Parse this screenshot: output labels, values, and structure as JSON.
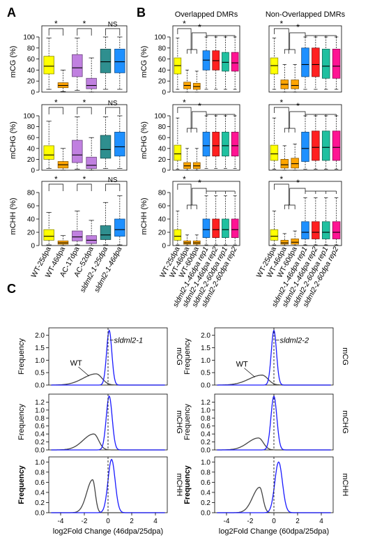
{
  "panels": {
    "A": "A",
    "B": "B",
    "C": "C"
  },
  "colors": {
    "yellow": "#ffff00",
    "orange": "#ffa500",
    "purple": "#c080e0",
    "teal": "#2f8f8f",
    "blue_box": "#1e90ff",
    "red": "#ff2020",
    "green": "#20c0a0",
    "pink": "#ff1493",
    "line_wt": "#444444",
    "line_mut": "#1a1aff"
  },
  "significance": {
    "star": "*",
    "ns": "NS"
  },
  "chart_data": [
    {
      "id": "A-mCG",
      "type": "box",
      "ylabel": "mCG (%)",
      "ylim": [
        0,
        100
      ],
      "yticks": [
        0,
        20,
        40,
        60,
        80,
        100
      ],
      "boxes": [
        {
          "color": "yellow",
          "q1": 33,
          "med": 47,
          "q3": 65,
          "lo": 5,
          "hi": 98
        },
        {
          "color": "orange",
          "q1": 8,
          "med": 12,
          "q3": 17,
          "lo": 1,
          "hi": 40
        },
        {
          "color": "purple",
          "q1": 28,
          "med": 44,
          "q3": 68,
          "lo": 3,
          "hi": 98
        },
        {
          "color": "purple",
          "q1": 6,
          "med": 12,
          "q3": 25,
          "lo": 0,
          "hi": 62
        },
        {
          "color": "teal",
          "q1": 35,
          "med": 55,
          "q3": 78,
          "lo": 5,
          "hi": 100
        },
        {
          "color": "blue_box",
          "q1": 35,
          "med": 55,
          "q3": 78,
          "lo": 5,
          "hi": 100
        }
      ]
    },
    {
      "id": "A-mCHG",
      "type": "box",
      "ylabel": "mCHG (%)",
      "ylim": [
        0,
        100
      ],
      "yticks": [
        0,
        20,
        40,
        60,
        80,
        100
      ],
      "boxes": [
        {
          "color": "yellow",
          "q1": 20,
          "med": 28,
          "q3": 45,
          "lo": 3,
          "hi": 90
        },
        {
          "color": "orange",
          "q1": 4,
          "med": 10,
          "q3": 16,
          "lo": 0,
          "hi": 40
        },
        {
          "color": "purple",
          "q1": 14,
          "med": 28,
          "q3": 55,
          "lo": 2,
          "hi": 98
        },
        {
          "color": "purple",
          "q1": 3,
          "med": 9,
          "q3": 24,
          "lo": 0,
          "hi": 60
        },
        {
          "color": "teal",
          "q1": 22,
          "med": 38,
          "q3": 64,
          "lo": 3,
          "hi": 98
        },
        {
          "color": "blue_box",
          "q1": 26,
          "med": 43,
          "q3": 70,
          "lo": 3,
          "hi": 100
        }
      ]
    },
    {
      "id": "A-mCHH",
      "type": "box",
      "ylabel": "mCHH (%)",
      "ylim": [
        0,
        80
      ],
      "yticks": [
        0,
        20,
        40,
        60,
        80
      ],
      "boxes": [
        {
          "color": "yellow",
          "q1": 8,
          "med": 14,
          "q3": 24,
          "lo": 1,
          "hi": 50
        },
        {
          "color": "orange",
          "q1": 2,
          "med": 4,
          "q3": 7,
          "lo": 0,
          "hi": 15
        },
        {
          "color": "purple",
          "q1": 7,
          "med": 13,
          "q3": 22,
          "lo": 1,
          "hi": 52
        },
        {
          "color": "purple",
          "q1": 3,
          "med": 8,
          "q3": 15,
          "lo": 0,
          "hi": 38
        },
        {
          "color": "teal",
          "q1": 9,
          "med": 16,
          "q3": 30,
          "lo": 1,
          "hi": 65
        },
        {
          "color": "blue_box",
          "q1": 14,
          "med": 24,
          "q3": 40,
          "lo": 1,
          "hi": 75
        }
      ]
    },
    {
      "id": "B-ov-mCG",
      "type": "box",
      "ylabel": "mCG (%)",
      "ylim": [
        0,
        100
      ],
      "title": "Overlapped DMRs",
      "yticks": [
        0,
        20,
        40,
        60,
        80,
        100
      ],
      "boxes": [
        {
          "color": "yellow",
          "q1": 33,
          "med": 48,
          "q3": 62,
          "lo": 5,
          "hi": 98
        },
        {
          "color": "orange",
          "q1": 6,
          "med": 12,
          "q3": 18,
          "lo": 0,
          "hi": 40
        },
        {
          "color": "orange",
          "q1": 5,
          "med": 10,
          "q3": 16,
          "lo": 0,
          "hi": 38
        },
        {
          "color": "blue_box",
          "q1": 40,
          "med": 58,
          "q3": 75,
          "lo": 5,
          "hi": 100
        },
        {
          "color": "red",
          "q1": 40,
          "med": 57,
          "q3": 75,
          "lo": 5,
          "hi": 100
        },
        {
          "color": "green",
          "q1": 38,
          "med": 54,
          "q3": 72,
          "lo": 5,
          "hi": 100
        },
        {
          "color": "pink",
          "q1": 38,
          "med": 53,
          "q3": 72,
          "lo": 5,
          "hi": 100
        }
      ]
    },
    {
      "id": "B-non-mCG",
      "type": "box",
      "ylabel": "",
      "ylim": [
        0,
        100
      ],
      "title": "Non-Overlapped DMRs",
      "yticks": [],
      "boxes": [
        {
          "color": "yellow",
          "q1": 33,
          "med": 48,
          "q3": 62,
          "lo": 5,
          "hi": 98
        },
        {
          "color": "orange",
          "q1": 6,
          "med": 14,
          "q3": 22,
          "lo": 0,
          "hi": 50
        },
        {
          "color": "orange",
          "q1": 6,
          "med": 12,
          "q3": 22,
          "lo": 0,
          "hi": 50
        },
        {
          "color": "blue_box",
          "q1": 28,
          "med": 50,
          "q3": 80,
          "lo": 5,
          "hi": 100
        },
        {
          "color": "red",
          "q1": 28,
          "med": 50,
          "q3": 80,
          "lo": 5,
          "hi": 100
        },
        {
          "color": "green",
          "q1": 25,
          "med": 47,
          "q3": 78,
          "lo": 5,
          "hi": 100
        },
        {
          "color": "pink",
          "q1": 25,
          "med": 47,
          "q3": 78,
          "lo": 5,
          "hi": 100
        }
      ]
    },
    {
      "id": "B-ov-mCHG",
      "type": "box",
      "ylabel": "mCHG (%)",
      "ylim": [
        0,
        100
      ],
      "yticks": [
        0,
        20,
        40,
        60,
        80,
        100
      ],
      "boxes": [
        {
          "color": "yellow",
          "q1": 18,
          "med": 30,
          "q3": 46,
          "lo": 2,
          "hi": 96
        },
        {
          "color": "orange",
          "q1": 3,
          "med": 8,
          "q3": 14,
          "lo": 0,
          "hi": 40
        },
        {
          "color": "orange",
          "q1": 3,
          "med": 8,
          "q3": 14,
          "lo": 0,
          "hi": 40
        },
        {
          "color": "blue_box",
          "q1": 26,
          "med": 45,
          "q3": 70,
          "lo": 3,
          "hi": 100
        },
        {
          "color": "red",
          "q1": 26,
          "med": 45,
          "q3": 70,
          "lo": 3,
          "hi": 100
        },
        {
          "color": "green",
          "q1": 26,
          "med": 45,
          "q3": 70,
          "lo": 3,
          "hi": 100
        },
        {
          "color": "pink",
          "q1": 26,
          "med": 45,
          "q3": 70,
          "lo": 3,
          "hi": 100
        }
      ]
    },
    {
      "id": "B-non-mCHG",
      "type": "box",
      "ylabel": "",
      "ylim": [
        0,
        100
      ],
      "yticks": [],
      "boxes": [
        {
          "color": "yellow",
          "q1": 18,
          "med": 30,
          "q3": 46,
          "lo": 2,
          "hi": 96
        },
        {
          "color": "orange",
          "q1": 4,
          "med": 10,
          "q3": 20,
          "lo": 0,
          "hi": 45
        },
        {
          "color": "orange",
          "q1": 4,
          "med": 12,
          "q3": 22,
          "lo": 0,
          "hi": 48
        },
        {
          "color": "blue_box",
          "q1": 16,
          "med": 40,
          "q3": 70,
          "lo": 2,
          "hi": 100
        },
        {
          "color": "red",
          "q1": 18,
          "med": 42,
          "q3": 72,
          "lo": 2,
          "hi": 100
        },
        {
          "color": "green",
          "q1": 18,
          "med": 42,
          "q3": 72,
          "lo": 2,
          "hi": 100
        },
        {
          "color": "pink",
          "q1": 18,
          "med": 42,
          "q3": 72,
          "lo": 2,
          "hi": 100
        }
      ]
    },
    {
      "id": "B-ov-mCHH",
      "type": "box",
      "ylabel": "mCHH (%)",
      "ylim": [
        0,
        80
      ],
      "yticks": [
        0,
        20,
        40,
        60,
        80
      ],
      "boxes": [
        {
          "color": "yellow",
          "q1": 8,
          "med": 14,
          "q3": 24,
          "lo": 1,
          "hi": 52
        },
        {
          "color": "orange",
          "q1": 2,
          "med": 4,
          "q3": 7,
          "lo": 0,
          "hi": 16
        },
        {
          "color": "orange",
          "q1": 2,
          "med": 4,
          "q3": 7,
          "lo": 0,
          "hi": 16
        },
        {
          "color": "blue_box",
          "q1": 12,
          "med": 24,
          "q3": 40,
          "lo": 1,
          "hi": 75
        },
        {
          "color": "red",
          "q1": 12,
          "med": 24,
          "q3": 40,
          "lo": 1,
          "hi": 75
        },
        {
          "color": "green",
          "q1": 12,
          "med": 24,
          "q3": 40,
          "lo": 1,
          "hi": 75
        },
        {
          "color": "pink",
          "q1": 12,
          "med": 24,
          "q3": 40,
          "lo": 1,
          "hi": 75
        }
      ]
    },
    {
      "id": "B-non-mCHH",
      "type": "box",
      "ylabel": "",
      "ylim": [
        0,
        80
      ],
      "yticks": [],
      "boxes": [
        {
          "color": "yellow",
          "q1": 8,
          "med": 14,
          "q3": 24,
          "lo": 1,
          "hi": 52
        },
        {
          "color": "orange",
          "q1": 2,
          "med": 4,
          "q3": 8,
          "lo": 0,
          "hi": 18
        },
        {
          "color": "orange",
          "q1": 2,
          "med": 5,
          "q3": 10,
          "lo": 0,
          "hi": 22
        },
        {
          "color": "blue_box",
          "q1": 10,
          "med": 20,
          "q3": 36,
          "lo": 1,
          "hi": 72
        },
        {
          "color": "red",
          "q1": 10,
          "med": 20,
          "q3": 36,
          "lo": 1,
          "hi": 72
        },
        {
          "color": "green",
          "q1": 10,
          "med": 20,
          "q3": 36,
          "lo": 1,
          "hi": 72
        },
        {
          "color": "pink",
          "q1": 10,
          "med": 20,
          "q3": 36,
          "lo": 1,
          "hi": 72
        }
      ]
    }
  ],
  "box_categories": {
    "A": [
      "WT-25dpa",
      "WT-46dpa",
      "AC-17dpa",
      "AC-52dpa",
      "sldml2-1-25dpa",
      "sldml2-1-46dpa"
    ],
    "B_overlapped": [
      "WT-25dpa",
      "WT-46dpa",
      "WT-60dpa",
      "sldml2-1-46dpa rep1",
      "sldml2-1-46dpa rep2",
      "sldml2-2-60dpa rep1",
      "sldml2-2-60dpa rep2"
    ],
    "B_non_overlapped": [
      "WT-25dpa",
      "WT-46dpa",
      "WT-60dpa",
      "sldml2-1-46dpa rep1",
      "sldml2-1-46dpa rep2",
      "sldml2-2-60dpa rep1",
      "sldml2-2-60dpa rep2"
    ]
  },
  "density": {
    "ylabel": "Frequency",
    "ylabel_bold": "Frequency",
    "xticks": [
      -4,
      -2,
      0,
      2,
      4
    ],
    "left_xlabel": "log2Fold Change (46dpa/25dpa)",
    "right_xlabel": "log2Fold Change (60dpa/25dpa)",
    "wt_label": "WT",
    "left_mutant": "sldml2-1",
    "right_mutant": "sldml2-2",
    "rows": [
      {
        "context": "mCG",
        "yticks": [
          "0.0",
          "0.5",
          "1.0",
          "1.5",
          "2.0"
        ],
        "ymax": 2.3,
        "wt": {
          "mu": -1.0,
          "sd": 1.1,
          "peak": 0.45
        },
        "mut": {
          "mu": 0.1,
          "sd": 0.22,
          "peak": 2.2
        }
      },
      {
        "context": "mCHG",
        "yticks": [
          "0.0",
          "0.2",
          "0.4",
          "0.6",
          "0.8",
          "1.0",
          "1.2"
        ],
        "ymax": 1.4,
        "wt": {
          "mu": -1.2,
          "sd": 0.9,
          "peak": 0.4
        },
        "mut": {
          "mu": 0.1,
          "sd": 0.25,
          "peak": 1.35
        }
      },
      {
        "context": "mCHH",
        "yticks": [
          "0.0",
          "0.2",
          "0.4",
          "0.6",
          "0.8",
          "1.0"
        ],
        "ymax": 1.1,
        "wt": {
          "mu": -1.3,
          "sd": 0.5,
          "peak": 0.65
        },
        "mut": {
          "mu": 0.3,
          "sd": 0.3,
          "peak": 1.05
        }
      }
    ],
    "right_rows": [
      {
        "context": "mCG",
        "yticks": [
          "0.0",
          "0.5",
          "1.0",
          "1.5",
          "2.0"
        ],
        "ymax": 2.3,
        "wt": {
          "mu": -1.0,
          "sd": 1.1,
          "peak": 0.4
        },
        "mut": {
          "mu": 0.0,
          "sd": 0.22,
          "peak": 2.2
        }
      },
      {
        "context": "mCHG",
        "yticks": [
          "0.0",
          "0.2",
          "0.4",
          "0.6",
          "0.8",
          "1.0",
          "1.2"
        ],
        "ymax": 1.4,
        "wt": {
          "mu": -1.3,
          "sd": 0.9,
          "peak": 0.3
        },
        "mut": {
          "mu": 0.0,
          "sd": 0.25,
          "peak": 1.35
        }
      },
      {
        "context": "mCHH",
        "yticks": [
          "0.0",
          "0.2",
          "0.4",
          "0.6",
          "0.8",
          "1.0"
        ],
        "ymax": 1.1,
        "wt": {
          "mu": -1.2,
          "sd": 0.6,
          "peak": 0.5
        },
        "mut": {
          "mu": 0.4,
          "sd": 0.32,
          "peak": 1.0
        }
      }
    ]
  }
}
